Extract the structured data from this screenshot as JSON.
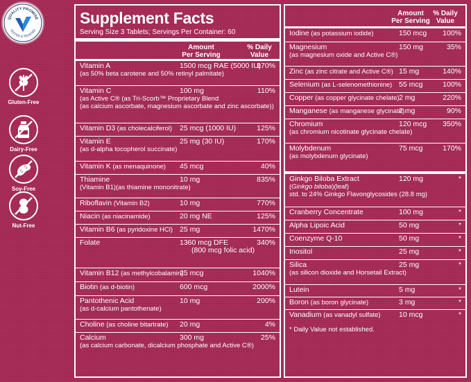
{
  "badge": {
    "top": "QUALITY PROMISE",
    "bottom": "TESTED & TRUSTED"
  },
  "free_items": [
    {
      "label": "Gluten-Free",
      "icon": "wheat-icon"
    },
    {
      "label": "Dairy-Free",
      "icon": "milk-bottle-icon"
    },
    {
      "label": "Soy-Free",
      "icon": "soybean-icon"
    },
    {
      "label": "Nut-Free",
      "icon": "peanut-icon"
    }
  ],
  "facts": {
    "title": "Supplement Facts",
    "serving": "Serving Size 3 Tablets; Servings Per Container: 60",
    "col_amount_1": "Amount",
    "col_amount_2": "Per Serving",
    "col_dv_1": "% Daily",
    "col_dv_2": "Value",
    "left_rows": [
      {
        "name": "Vitamin A",
        "amount": "1500 mcg RAE (5000 IU)",
        "dv": "170%",
        "sub": "(as 50% beta carotene and 50% retinyl palmitate)"
      },
      {
        "name": "Vitamin C",
        "amount": "100 mg",
        "dv": "110%",
        "sub": "(as Active C® (as Tri-Scorb™ Proprietary Blend",
        "sub2": "(as calcium ascorbate, magnesium ascorbate and zinc ascorbate))"
      },
      {
        "name": "Vitamin D3",
        "name_sub": " (as cholecalciferol)",
        "amount": "25 mcg (1000 IU)",
        "dv": "125%"
      },
      {
        "name": "Vitamin E",
        "amount": "25 mg (30 IU)",
        "dv": "170%",
        "sub": "(as d-alpha tocopherol succinate)"
      },
      {
        "name": "Vitamin K",
        "name_sub": " (as menaquinone)",
        "amount": "45 mcg",
        "dv": "40%"
      },
      {
        "name": "Thiamine",
        "amount": "10 mg",
        "dv": "835%",
        "sub": "(Vitamin B1)(as thiamine mononitrate)"
      },
      {
        "name": "Riboflavin",
        "name_sub": " (Vitamin B2)",
        "amount": "10 mg",
        "dv": "770%"
      },
      {
        "name": "Niacin",
        "name_sub": " (as niacinamide)",
        "amount": "20 mg NE",
        "dv": "125%"
      },
      {
        "name": "Vitamin B6",
        "name_sub": " (as pyridoxine HCl)",
        "amount": "25 mg",
        "dv": "1470%"
      },
      {
        "name": "Folate",
        "amount": "1360 mcg DFE",
        "amount2": "(800 mcg folic acid)",
        "dv": "340%"
      },
      {
        "name": "Vitamin B12",
        "name_sub": " (as methylcobalamin)",
        "amount": "25 mcg",
        "dv": "1040%"
      },
      {
        "name": "Biotin",
        "name_sub": " (as d-biotin)",
        "amount": "600 mcg",
        "dv": "2000%"
      },
      {
        "name": "Pantothenic Acid",
        "amount": "10 mg",
        "dv": "200%",
        "sub": "(as d-calcium pantothenate)"
      },
      {
        "name": "Choline",
        "name_sub": " (as choline bitartrate)",
        "amount": "20 mg",
        "dv": "4%"
      },
      {
        "name": "Calcium",
        "amount": "300 mg",
        "dv": "25%",
        "sub": "(as calcium carbonate, dicalcium phosphate and Active C®)"
      }
    ],
    "right_rows": [
      {
        "name": "Iodine",
        "name_sub": " (as potassium iodide)",
        "amount": "150 mcg",
        "dv": "100%"
      },
      {
        "name": "Magnesium",
        "amount": "150 mg",
        "dv": "35%",
        "sub": "(as magnesium oxide and Active C®)"
      },
      {
        "name": "Zinc",
        "name_sub": " (as zinc citrate and Active C®)",
        "amount": "15 mg",
        "dv": "140%"
      },
      {
        "name": "Selenium",
        "name_sub": " (as L-selenomethionine)",
        "amount": "55 mcg",
        "dv": "100%"
      },
      {
        "name": "Copper",
        "name_sub": " (as copper glycinate chelate)",
        "amount": "2 mg",
        "dv": "220%"
      },
      {
        "name": "Manganese",
        "name_sub": " (as manganese glycinate)",
        "amount": "2 mg",
        "dv": "90%"
      },
      {
        "name": "Chromium",
        "amount": "120 mcg",
        "dv": "350%",
        "sub": "(as chromium nicotinate glycinate chelate)"
      },
      {
        "name": "Molybdenum",
        "amount": "75 mcg",
        "dv": "170%",
        "sub": "(as molybdenum glycinate)"
      },
      {
        "name": "Ginkgo Biloba Extract",
        "amount": "120 mg",
        "dv": "*",
        "sub_italic": "Ginkgo biloba",
        "sub_pre": "(",
        "sub_post": ")(leaf)",
        "sub2": "std. to 24% Ginkgo Flavonglycosides (28.8 mg)"
      },
      {
        "name": "Cranberry Concentrate",
        "amount": "100 mg",
        "dv": "*"
      },
      {
        "name": "Alpha Lipoic Acid",
        "amount": "50 mg",
        "dv": "*"
      },
      {
        "name": "Coenzyme Q-10",
        "amount": "50 mg",
        "dv": "*"
      },
      {
        "name": "Inositol",
        "amount": "25 mg",
        "dv": "*"
      },
      {
        "name": "Silica",
        "amount": "25 mg",
        "dv": "*",
        "sub": "(as silicon dioxide and Horsetail Extract)"
      },
      {
        "name": "Lutein",
        "amount": "5 mg",
        "dv": "*"
      },
      {
        "name": "Boron",
        "name_sub": " (as boron glycinate)",
        "amount": "3 mg",
        "dv": "*"
      },
      {
        "name": "Vanadium",
        "name_sub": " (as vanadyl sulfate)",
        "amount": "10 mcg",
        "dv": "*"
      }
    ],
    "footnote": "* Daily Value not established."
  }
}
